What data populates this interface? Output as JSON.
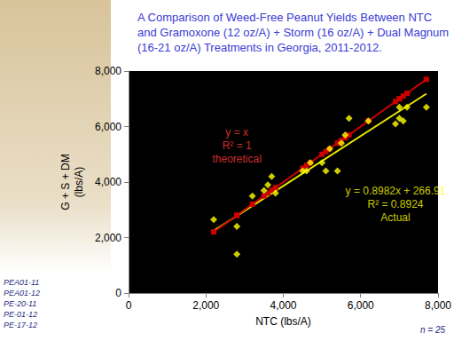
{
  "chart_data": {
    "type": "scatter",
    "title": "A Comparison of Weed-Free Peanut Yields Between NTC and Gramoxone (12 oz/A) + Storm (16 oz/A) + Dual Magnum (16-21 oz/A) Treatments in Georgia, 2011-2012.",
    "x_label": "NTC (lbs/A)",
    "y_label": "G + S + DM\n(lbs/A)",
    "xlim": [
      0,
      8000
    ],
    "xticks": [
      0,
      2000,
      4000,
      6000,
      8000
    ],
    "ylim": [
      0,
      8000
    ],
    "yticks": [
      0,
      2000,
      4000,
      6000,
      8000
    ],
    "grid": false,
    "series": [
      {
        "name": "y = 0.8982x + 266.91",
        "type": "line",
        "color": "#e6e600",
        "marker": "none",
        "x": [
          2200,
          7700
        ],
        "values": [
          2243,
          7183
        ]
      },
      {
        "name": "y = x",
        "type": "line",
        "color": "#cc0000",
        "marker": "square",
        "x": [
          2200,
          2800,
          2800,
          3200,
          3500,
          3600,
          3700,
          3800,
          4500,
          4600,
          4700,
          5000,
          5100,
          5200,
          5400,
          5500,
          5600,
          5700,
          6200,
          6900,
          7000,
          7000,
          7100,
          7200,
          7700
        ],
        "values": [
          2200,
          2800,
          2800,
          3200,
          3500,
          3600,
          3700,
          3800,
          4500,
          4600,
          4700,
          5000,
          5100,
          5200,
          5400,
          5500,
          5600,
          5700,
          6200,
          6900,
          7000,
          7000,
          7100,
          7200,
          7700
        ]
      },
      {
        "name": "Actual",
        "type": "scatter",
        "color": "#ffff00",
        "marker": "diamond",
        "x": [
          2200,
          2800,
          2800,
          3200,
          3500,
          3600,
          3700,
          3800,
          4500,
          4600,
          4700,
          5000,
          5100,
          5200,
          5400,
          5500,
          5600,
          5700,
          6200,
          6900,
          7000,
          7000,
          7100,
          7200,
          7700
        ],
        "values": [
          2650,
          2400,
          1400,
          3500,
          3700,
          3900,
          4200,
          3600,
          4400,
          4400,
          4700,
          4700,
          4400,
          5200,
          4400,
          5400,
          5700,
          6300,
          6200,
          6100,
          6700,
          6300,
          6200,
          6700,
          6700
        ]
      }
    ],
    "annotations": [
      {
        "text": "y = x\nR² = 1\ntheoretical",
        "color": "#ff3b3b",
        "x": 2800,
        "y": 5300
      },
      {
        "text": "y = 0.8982x + 266.91\nR² = 0.8924\nActual",
        "color": "#ffff00",
        "x": 6900,
        "y": 3200
      }
    ],
    "footnotes": [
      "PEA01-11",
      "PEA01-12",
      "PE-20-11",
      "PE-01-12",
      "PE-17-12"
    ],
    "note": "n = 25"
  }
}
